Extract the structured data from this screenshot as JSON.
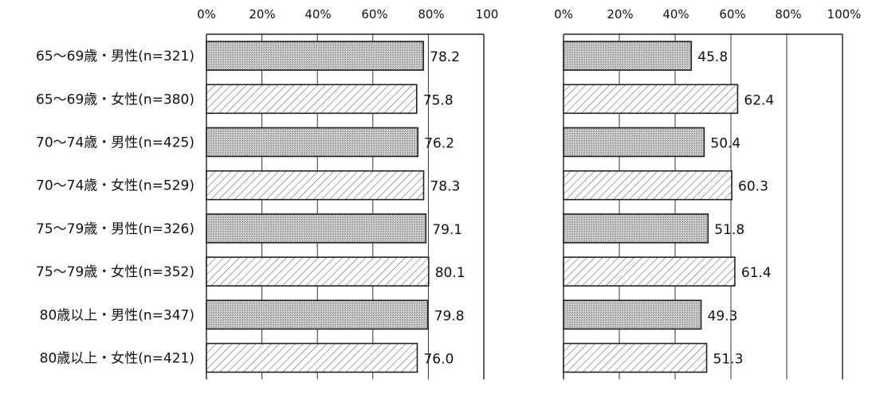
{
  "chart_data": [
    {
      "type": "bar",
      "orientation": "horizontal",
      "categories": [
        "65～69歳・男性(n=321)",
        "65～69歳・女性(n=380)",
        "70～74歳・男性(n=425)",
        "70～74歳・女性(n=529)",
        "75～79歳・男性(n=326)",
        "75～79歳・女性(n=352)",
        "80歳以上・男性(n=347)",
        "80歳以上・女性(n=421)"
      ],
      "values": [
        78.2,
        75.8,
        76.2,
        78.3,
        79.1,
        80.1,
        79.8,
        76.0
      ],
      "value_labels": [
        "78.2",
        "75.8",
        "76.2",
        "78.3",
        "79.1",
        "80.1",
        "79.8",
        "76.0"
      ],
      "x_ticks": [
        "0%",
        "20%",
        "40%",
        "60%",
        "80%",
        "100"
      ],
      "xlim": [
        0,
        100
      ],
      "grid": true
    },
    {
      "type": "bar",
      "orientation": "horizontal",
      "categories": [
        "65～69歳・男性(n=321)",
        "65～69歳・女性(n=380)",
        "70～74歳・男性(n=425)",
        "70～74歳・女性(n=529)",
        "75～79歳・男性(n=326)",
        "75～79歳・女性(n=352)",
        "80歳以上・男性(n=347)",
        "80歳以上・女性(n=421)"
      ],
      "values": [
        45.8,
        62.4,
        50.4,
        60.3,
        51.8,
        61.4,
        49.3,
        51.3
      ],
      "value_labels": [
        "45.8",
        "62.4",
        "50.4",
        "60.3",
        "51.8",
        "61.4",
        "49.3",
        "51.3"
      ],
      "x_ticks": [
        "0%",
        "20%",
        "40%",
        "60%",
        "80%",
        "100%"
      ],
      "xlim": [
        0,
        100
      ],
      "grid": true
    }
  ],
  "bar_fills": [
    "gray-dotted",
    "diagonal-hatch",
    "gray-dotted",
    "diagonal-hatch",
    "gray-dotted",
    "diagonal-hatch",
    "gray-dotted",
    "diagonal-hatch"
  ],
  "colors": {
    "male_fill": "#c4c4c4",
    "female_hatch": "#666666",
    "outline": "#222222"
  }
}
